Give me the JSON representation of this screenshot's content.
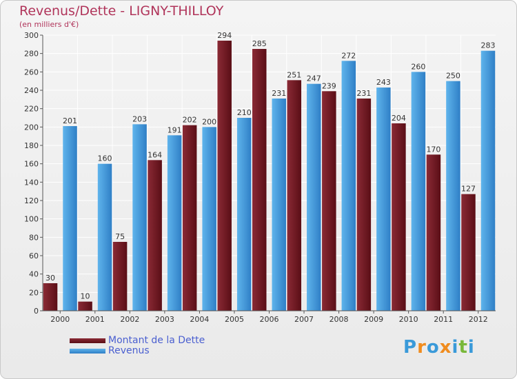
{
  "title": "Revenus/Dette - LIGNY-THILLOY",
  "subtitle": "(en milliers d'€)",
  "logo_text": "Proxiti",
  "logo_letters": [
    {
      "ch": "P",
      "color": "#3a9ad9"
    },
    {
      "ch": "r",
      "color": "#f08c1e"
    },
    {
      "ch": "o",
      "color": "#3a9ad9"
    },
    {
      "ch": "x",
      "color": "#f08c1e"
    },
    {
      "ch": "i",
      "color": "#3a9ad9"
    },
    {
      "ch": "t",
      "color": "#79b83a"
    },
    {
      "ch": "i",
      "color": "#3a9ad9"
    }
  ],
  "colors": {
    "dette_light": "#8a2a35",
    "dette_dark": "#5a0e16",
    "revenus_light": "#5fb4ec",
    "revenus_dark": "#2f7fc6",
    "grid": "#ffffff",
    "axis": "#555555"
  },
  "chart_data": {
    "type": "bar",
    "title": "Revenus/Dette - LIGNY-THILLOY",
    "ylabel": "(en milliers d'€)",
    "xlabel": "",
    "ylim": [
      0,
      300
    ],
    "ytick_step": 20,
    "grid": true,
    "legend_position": "bottom-left",
    "categories": [
      "2000",
      "2001",
      "2002",
      "2003",
      "2004",
      "2005",
      "2006",
      "2007",
      "2008",
      "2009",
      "2010",
      "2011",
      "2012"
    ],
    "series": [
      {
        "name": "Montant de la Dette",
        "values": [
          30,
          10,
          75,
          164,
          202,
          294,
          285,
          251,
          239,
          231,
          204,
          170,
          127
        ]
      },
      {
        "name": "Revenus",
        "values": [
          201,
          160,
          203,
          191,
          200,
          210,
          231,
          247,
          272,
          243,
          260,
          250,
          283
        ]
      }
    ]
  }
}
